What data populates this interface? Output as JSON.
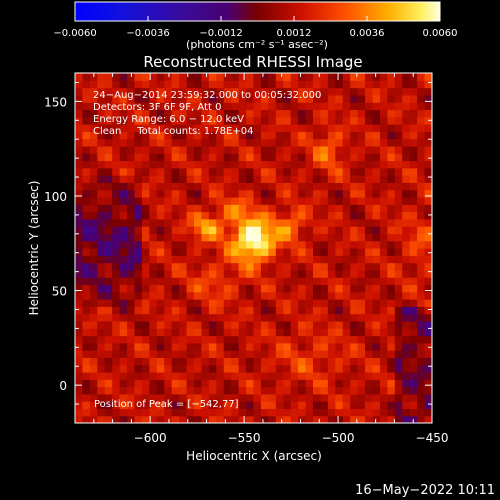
{
  "chart_data": {
    "type": "heatmap",
    "title": "Reconstructed RHESSI Image",
    "xlabel": "Heliocentric X (arcsec)",
    "ylabel": "Heliocentric Y (arcsec)",
    "xlim": [
      -640,
      -450
    ],
    "ylim": [
      -20,
      165
    ],
    "x_ticks": [
      -600,
      -550,
      -500,
      -450
    ],
    "x_tick_labels": [
      "−600",
      "−550",
      "−500",
      "−450"
    ],
    "y_ticks": [
      0,
      50,
      100,
      150
    ],
    "y_tick_labels": [
      "0",
      "50",
      "100",
      "150"
    ],
    "colorbar": {
      "min": -0.006,
      "max": 0.006,
      "ticks": [
        -0.006,
        -0.0036,
        -0.0012,
        0.0012,
        0.0036,
        0.006
      ],
      "tick_labels": [
        "−0.0060",
        "−0.0036",
        "−0.0012",
        "0.0012",
        "0.0036",
        "0.0060"
      ],
      "unit_label": "(photons cm⁻² s⁻¹ asec⁻²)"
    },
    "annotations": [
      "24−Aug−2014 23:59:32.000 to 00:05:32.000",
      "Detectors: 3F 6F 9F, Att 0",
      "Energy Range: 6.0 − 12.0 keV",
      "Clean     Total counts: 1.78E+04"
    ],
    "peak_text": "Position of Peak = [−542,77]",
    "peak": {
      "x": -542,
      "y": 77
    },
    "sources": [
      {
        "x": -545,
        "y": 77,
        "sx": 8,
        "sy": 8,
        "amp": 0.0055
      },
      {
        "x": -570,
        "y": 84,
        "sx": 6,
        "sy": 5,
        "amp": 0.0028
      },
      {
        "x": -525,
        "y": 85,
        "sx": 6,
        "sy": 6,
        "amp": 0.0022
      },
      {
        "x": -555,
        "y": 93,
        "sx": 7,
        "sy": 5,
        "amp": 0.0016
      },
      {
        "x": -505,
        "y": 125,
        "sx": 6,
        "sy": 8,
        "amp": 0.0018
      },
      {
        "x": -565,
        "y": 55,
        "sx": 10,
        "sy": 8,
        "amp": 0.0012
      },
      {
        "x": -515,
        "y": 15,
        "sx": 14,
        "sy": 10,
        "amp": 0.001
      },
      {
        "x": -455,
        "y": 75,
        "sx": 8,
        "sy": 12,
        "amp": 0.0011
      }
    ],
    "background_level": 0.0012,
    "grid": false
  },
  "footer": {
    "date": "16−May−2022 10:11"
  }
}
